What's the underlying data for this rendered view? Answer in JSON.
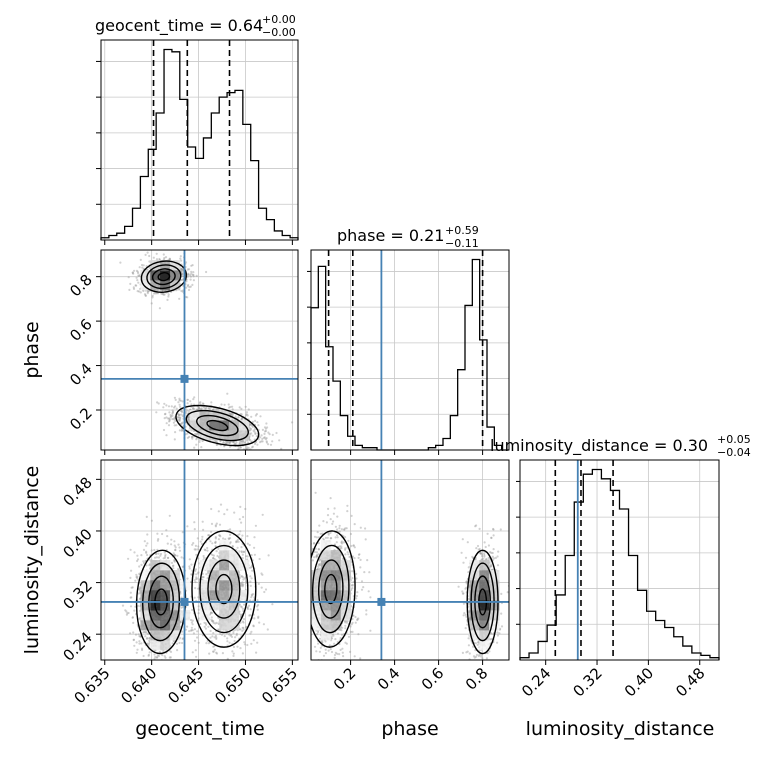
{
  "chart_data": {
    "type": "corner",
    "parameters": [
      "geocent_time",
      "phase",
      "luminosity_distance"
    ],
    "truths": {
      "geocent_time": 0.6435,
      "phase": 0.34,
      "luminosity_distance": 0.29
    },
    "titles": [
      {
        "param": "geocent_time",
        "prefix": "geocent_time = 0.64",
        "plus": "+0.00",
        "minus": "−0.00"
      },
      {
        "param": "phase",
        "prefix": "phase = 0.21",
        "plus": "+0.59",
        "minus": "−0.11"
      },
      {
        "param": "luminosity_distance",
        "prefix": "luminosity_distance = 0.30",
        "plus": "+0.05",
        "minus": "−0.04"
      }
    ],
    "axes": {
      "geocent_time": {
        "range": [
          0.6346,
          0.6556
        ],
        "ticks": [
          "0.635",
          "0.640",
          "0.645",
          "0.650",
          "0.655"
        ],
        "tick_values": [
          0.635,
          0.64,
          0.645,
          0.65,
          0.655
        ]
      },
      "phase": {
        "range": [
          0.02,
          0.92
        ],
        "ticks_x": [
          "0.2",
          "0.4",
          "0.6",
          "0.8"
        ],
        "tick_values_x": [
          0.2,
          0.4,
          0.6,
          0.8
        ],
        "ticks_y": [
          "0.2",
          "0.4",
          "0.6",
          "0.8"
        ],
        "tick_values_y": [
          0.2,
          0.4,
          0.6,
          0.8
        ]
      },
      "luminosity_distance": {
        "range": [
          0.2,
          0.51
        ],
        "ticks": [
          "0.24",
          "0.32",
          "0.40",
          "0.48"
        ],
        "tick_values": [
          0.24,
          0.32,
          0.4,
          0.48
        ]
      }
    },
    "histograms": {
      "geocent_time": {
        "quantiles": [
          0.6402,
          0.6438,
          0.6483
        ],
        "counts": [
          1,
          2,
          3,
          6,
          14,
          28,
          40,
          56,
          84,
          83,
          62,
          41,
          36,
          45,
          56,
          63,
          65,
          66,
          51,
          35,
          14,
          9,
          4,
          2,
          1
        ]
      },
      "phase": {
        "quantiles": [
          0.1,
          0.21,
          0.8
        ],
        "counts": [
          62,
          80,
          45,
          30,
          15,
          6,
          2,
          1,
          1,
          0,
          0,
          0,
          0,
          0,
          0,
          0,
          1,
          2,
          5,
          15,
          35,
          63,
          83,
          48,
          10,
          2,
          0
        ]
      },
      "luminosity_distance": {
        "quantiles": [
          0.255,
          0.295,
          0.345
        ],
        "counts": [
          1,
          3,
          8,
          15,
          28,
          45,
          68,
          80,
          82,
          78,
          73,
          65,
          45,
          30,
          21,
          17,
          14,
          10,
          6,
          3,
          2,
          1
        ]
      }
    },
    "grid": true,
    "xlabel": [
      "geocent_time",
      "phase",
      "luminosity_distance"
    ],
    "ylabel": [
      "phase",
      "luminosity_distance"
    ]
  }
}
